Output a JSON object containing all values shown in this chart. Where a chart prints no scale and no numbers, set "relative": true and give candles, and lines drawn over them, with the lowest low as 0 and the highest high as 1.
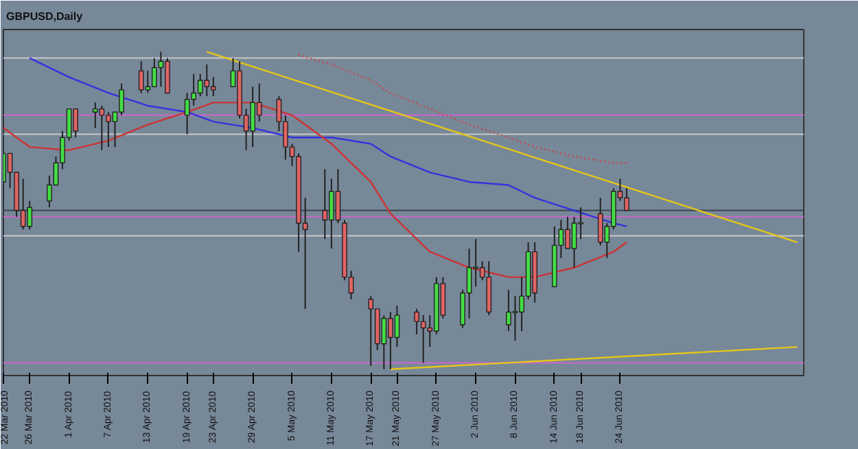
{
  "chart_data": {
    "type": "candlestick",
    "title": "GBPUSD,Daily",
    "relative": true,
    "grid": false,
    "x": [
      "2010-03-22",
      "2010-03-23",
      "2010-03-24",
      "2010-03-25",
      "2010-03-26",
      "2010-03-29",
      "2010-03-30",
      "2010-03-31",
      "2010-04-01",
      "2010-04-02",
      "2010-04-05",
      "2010-04-06",
      "2010-04-07",
      "2010-04-08",
      "2010-04-09",
      "2010-04-12",
      "2010-04-13",
      "2010-04-14",
      "2010-04-15",
      "2010-04-16",
      "2010-04-19",
      "2010-04-20",
      "2010-04-21",
      "2010-04-22",
      "2010-04-23",
      "2010-04-26",
      "2010-04-27",
      "2010-04-28",
      "2010-04-29",
      "2010-04-30",
      "2010-05-03",
      "2010-05-04",
      "2010-05-05",
      "2010-05-06",
      "2010-05-07",
      "2010-05-10",
      "2010-05-11",
      "2010-05-12",
      "2010-05-13",
      "2010-05-14",
      "2010-05-17",
      "2010-05-18",
      "2010-05-19",
      "2010-05-20",
      "2010-05-21",
      "2010-05-24",
      "2010-05-25",
      "2010-05-26",
      "2010-05-27",
      "2010-05-28",
      "2010-05-31",
      "2010-06-01",
      "2010-06-02",
      "2010-06-03",
      "2010-06-04",
      "2010-06-07",
      "2010-06-08",
      "2010-06-09",
      "2010-06-10",
      "2010-06-11",
      "2010-06-14",
      "2010-06-15",
      "2010-06-16",
      "2010-06-17",
      "2010-06-18",
      "2010-06-21",
      "2010-06-22",
      "2010-06-23",
      "2010-06-24",
      "2010-06-25"
    ],
    "ohlc": [
      [
        0.59,
        0.68,
        0.54,
        0.68
      ],
      [
        0.68,
        0.68,
        0.57,
        0.62
      ],
      [
        0.62,
        0.62,
        0.48,
        0.5
      ],
      [
        0.5,
        0.6,
        0.44,
        0.45
      ],
      [
        0.45,
        0.53,
        0.44,
        0.51
      ],
      [
        0.53,
        0.61,
        0.51,
        0.58
      ],
      [
        0.58,
        0.67,
        0.58,
        0.65
      ],
      [
        0.65,
        0.75,
        0.63,
        0.73
      ],
      [
        0.73,
        0.82,
        0.72,
        0.82
      ],
      [
        0.82,
        0.82,
        0.73,
        0.75
      ],
      [
        0.81,
        0.84,
        0.76,
        0.82
      ],
      [
        0.82,
        0.83,
        0.69,
        0.8
      ],
      [
        0.8,
        0.81,
        0.7,
        0.78
      ],
      [
        0.78,
        0.81,
        0.7,
        0.81
      ],
      [
        0.81,
        0.9,
        0.8,
        0.88
      ],
      [
        0.94,
        0.97,
        0.87,
        0.88
      ],
      [
        0.88,
        0.94,
        0.87,
        0.89
      ],
      [
        0.89,
        0.98,
        0.89,
        0.95
      ],
      [
        0.95,
        1.0,
        0.89,
        0.97
      ],
      [
        0.97,
        0.98,
        0.87,
        0.87
      ],
      [
        0.8,
        0.87,
        0.74,
        0.85
      ],
      [
        0.85,
        0.93,
        0.83,
        0.87
      ],
      [
        0.87,
        0.93,
        0.86,
        0.91
      ],
      [
        0.91,
        0.96,
        0.86,
        0.89
      ],
      [
        0.89,
        0.92,
        0.86,
        0.88
      ],
      [
        0.89,
        0.98,
        0.89,
        0.94
      ],
      [
        0.94,
        0.97,
        0.79,
        0.8
      ],
      [
        0.8,
        0.82,
        0.69,
        0.75
      ],
      [
        0.75,
        0.89,
        0.7,
        0.84
      ],
      [
        0.84,
        0.9,
        0.78,
        0.8
      ],
      [
        0.85,
        0.86,
        0.75,
        0.78
      ],
      [
        0.78,
        0.8,
        0.66,
        0.7
      ],
      [
        0.7,
        0.71,
        0.64,
        0.67
      ],
      [
        0.67,
        0.68,
        0.37,
        0.46
      ],
      [
        0.46,
        0.54,
        0.19,
        0.44
      ],
      [
        0.5,
        0.63,
        0.41,
        0.47
      ],
      [
        0.47,
        0.6,
        0.38,
        0.56
      ],
      [
        0.56,
        0.63,
        0.46,
        0.47
      ],
      [
        0.46,
        0.47,
        0.28,
        0.29
      ],
      [
        0.29,
        0.31,
        0.22,
        0.24
      ],
      [
        0.22,
        0.23,
        0.01,
        0.19
      ],
      [
        0.19,
        0.19,
        0.06,
        0.08
      ],
      [
        0.08,
        0.17,
        0.0,
        0.16
      ],
      [
        0.16,
        0.18,
        0.0,
        0.1
      ],
      [
        0.1,
        0.2,
        0.07,
        0.17
      ],
      [
        0.18,
        0.19,
        0.11,
        0.15
      ],
      [
        0.15,
        0.17,
        0.02,
        0.13
      ],
      [
        0.13,
        0.17,
        0.07,
        0.12
      ],
      [
        0.12,
        0.29,
        0.11,
        0.27
      ],
      [
        0.27,
        0.29,
        0.16,
        0.17
      ],
      [
        0.14,
        0.25,
        0.13,
        0.24
      ],
      [
        0.24,
        0.38,
        0.16,
        0.32
      ],
      [
        0.32,
        0.41,
        0.26,
        0.32
      ],
      [
        0.32,
        0.34,
        0.28,
        0.29
      ],
      [
        0.29,
        0.34,
        0.17,
        0.18
      ],
      [
        0.14,
        0.25,
        0.12,
        0.18
      ],
      [
        0.18,
        0.23,
        0.09,
        0.18
      ],
      [
        0.18,
        0.29,
        0.12,
        0.23
      ],
      [
        0.23,
        0.4,
        0.22,
        0.37
      ],
      [
        0.37,
        0.4,
        0.21,
        0.24
      ],
      [
        0.26,
        0.45,
        0.26,
        0.39
      ],
      [
        0.39,
        0.47,
        0.35,
        0.44
      ],
      [
        0.44,
        0.48,
        0.38,
        0.38
      ],
      [
        0.38,
        0.48,
        0.32,
        0.46
      ],
      [
        0.46,
        0.51,
        0.41,
        0.46
      ],
      [
        0.49,
        0.54,
        0.39,
        0.4
      ],
      [
        0.4,
        0.46,
        0.35,
        0.45
      ],
      [
        0.45,
        0.57,
        0.44,
        0.56
      ],
      [
        0.56,
        0.6,
        0.53,
        0.54
      ],
      [
        0.54,
        0.57,
        0.5,
        0.5
      ]
    ],
    "xlim": [
      "2010-03-22",
      "2010-07-22"
    ],
    "xticks": [
      {
        "value": "2010-03-22",
        "label": "22 Mar 2010"
      },
      {
        "value": "2010-03-26",
        "label": "26 Mar 2010"
      },
      {
        "value": "2010-04-01",
        "label": "1 Apr 2010"
      },
      {
        "value": "2010-04-07",
        "label": "7 Apr 2010"
      },
      {
        "value": "2010-04-13",
        "label": "13 Apr 2010"
      },
      {
        "value": "2010-04-19",
        "label": "19 Apr 2010"
      },
      {
        "value": "2010-04-23",
        "label": "23 Apr 2010"
      },
      {
        "value": "2010-04-29",
        "label": "29 Apr 2010"
      },
      {
        "value": "2010-05-05",
        "label": "5 May 2010"
      },
      {
        "value": "2010-05-11",
        "label": "11 May 2010"
      },
      {
        "value": "2010-05-17",
        "label": "17 May 2010"
      },
      {
        "value": "2010-05-21",
        "label": "21 May 2010"
      },
      {
        "value": "2010-05-27",
        "label": "27 May 2010"
      },
      {
        "value": "2010-06-02",
        "label": "2 Jun 2010"
      },
      {
        "value": "2010-06-08",
        "label": "8 Jun 2010"
      },
      {
        "value": "2010-06-14",
        "label": "14 Jun 2010"
      },
      {
        "value": "2010-06-18",
        "label": "18 Jun 2010"
      },
      {
        "value": "2010-06-24",
        "label": "24 Jun 2010"
      }
    ],
    "series": [
      {
        "type": "line",
        "color": "#3333dd",
        "line_style": "solid",
        "x": [
          "2010-03-26",
          "2010-04-01",
          "2010-04-07",
          "2010-04-13",
          "2010-04-19",
          "2010-04-23",
          "2010-04-29",
          "2010-05-05",
          "2010-05-11",
          "2010-05-17",
          "2010-05-20",
          "2010-05-26",
          "2010-06-01",
          "2010-06-07",
          "2010-06-11",
          "2010-06-17",
          "2010-06-23",
          "2010-06-25"
        ],
        "values": [
          0.98,
          0.92,
          0.87,
          0.83,
          0.81,
          0.78,
          0.76,
          0.73,
          0.73,
          0.71,
          0.67,
          0.62,
          0.59,
          0.58,
          0.54,
          0.5,
          0.46,
          0.45
        ]
      },
      {
        "type": "line",
        "color": "#cc3333",
        "line_style": "solid",
        "x": [
          "2010-03-22",
          "2010-03-26",
          "2010-04-01",
          "2010-04-07",
          "2010-04-13",
          "2010-04-19",
          "2010-04-23",
          "2010-04-29",
          "2010-05-05",
          "2010-05-11",
          "2010-05-17",
          "2010-05-20",
          "2010-05-26",
          "2010-06-01",
          "2010-06-07",
          "2010-06-11",
          "2010-06-17",
          "2010-06-23",
          "2010-06-25"
        ],
        "values": [
          0.76,
          0.7,
          0.69,
          0.72,
          0.77,
          0.81,
          0.84,
          0.84,
          0.8,
          0.71,
          0.59,
          0.49,
          0.37,
          0.32,
          0.29,
          0.29,
          0.32,
          0.37,
          0.4
        ]
      },
      {
        "type": "line",
        "color": "#cc4444",
        "line_style": "dotted",
        "x": [
          "2010-05-06",
          "2010-05-11",
          "2010-05-17",
          "2010-05-20",
          "2010-05-26",
          "2010-06-01",
          "2010-06-07",
          "2010-06-11",
          "2010-06-17",
          "2010-06-23",
          "2010-06-25"
        ],
        "values": [
          0.99,
          0.96,
          0.91,
          0.87,
          0.82,
          0.77,
          0.73,
          0.7,
          0.67,
          0.65,
          0.65
        ]
      },
      {
        "type": "line",
        "color": "#e6c619",
        "line_style": "solid",
        "x": [
          "2010-04-22",
          "2010-07-21"
        ],
        "values": [
          1.0,
          0.4
        ]
      },
      {
        "type": "line",
        "color": "#e6c619",
        "line_style": "solid",
        "x": [
          "2010-05-20",
          "2010-07-21"
        ],
        "values": [
          0.0,
          0.07
        ]
      }
    ],
    "ref_lines": [
      {
        "axis": "y",
        "value": 0.98,
        "color": "#c8c8c8"
      },
      {
        "axis": "y",
        "value": 0.8,
        "color": "#cc66cc"
      },
      {
        "axis": "y",
        "value": 0.74,
        "color": "#c8c8c8"
      },
      {
        "axis": "y",
        "value": 0.5,
        "color": "#3a4450"
      },
      {
        "axis": "y",
        "value": 0.48,
        "color": "#cc66cc"
      },
      {
        "axis": "y",
        "value": 0.42,
        "color": "#c8c8c8"
      },
      {
        "axis": "y",
        "value": 0.02,
        "color": "#cc66cc"
      }
    ]
  }
}
